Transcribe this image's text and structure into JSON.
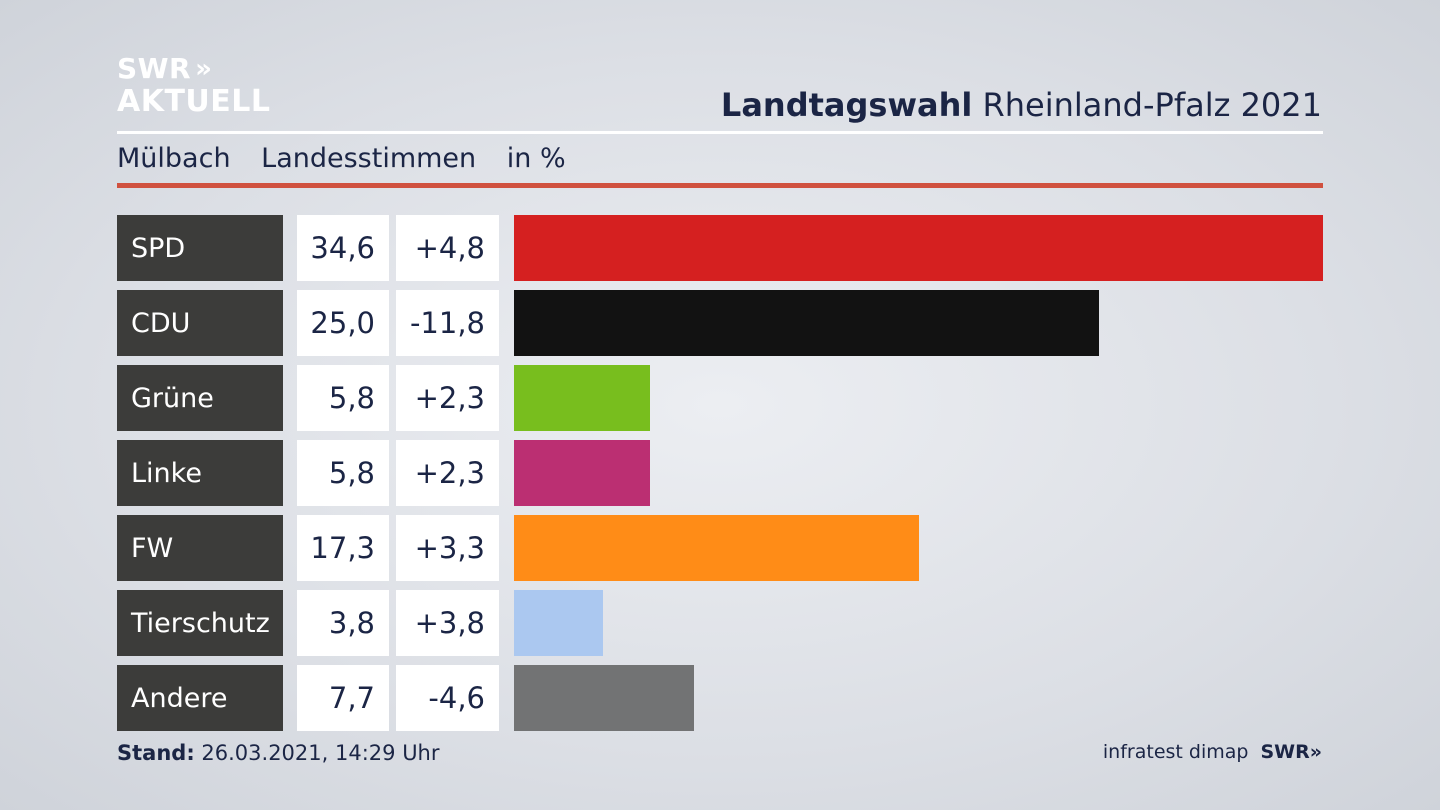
{
  "logo": {
    "top": "SWR",
    "chevrons": "»",
    "bottom": "AKTUELL"
  },
  "header": {
    "title_bold": "Landtagswahl",
    "title_rest": "Rheinland-Pfalz 2021"
  },
  "subheader": {
    "location": "Mülbach",
    "type": "Landesstimmen",
    "unit": "in %"
  },
  "footer": {
    "stand_label": "Stand:",
    "stand_value": "26.03.2021, 14:29 Uhr",
    "source": "infratest dimap",
    "brand": "SWR»"
  },
  "chart_data": {
    "type": "bar",
    "orientation": "horizontal",
    "xlim": [
      0,
      34.6
    ],
    "categories": [
      "SPD",
      "CDU",
      "Grüne",
      "Linke",
      "FW",
      "Tierschutz",
      "Andere"
    ],
    "values": [
      34.6,
      25.0,
      5.8,
      5.8,
      17.3,
      3.8,
      7.7
    ],
    "value_labels": [
      "34,6",
      "25,0",
      "5,8",
      "5,8",
      "17,3",
      "3,8",
      "7,7"
    ],
    "diff_labels": [
      "+4,8",
      "-11,8",
      "+2,3",
      "+2,3",
      "+3,3",
      "+3,8",
      "-4,6"
    ],
    "colors": [
      "#d52020",
      "#121212",
      "#78be1e",
      "#bb2f72",
      "#ff8c17",
      "#abc8f0",
      "#727374"
    ]
  }
}
